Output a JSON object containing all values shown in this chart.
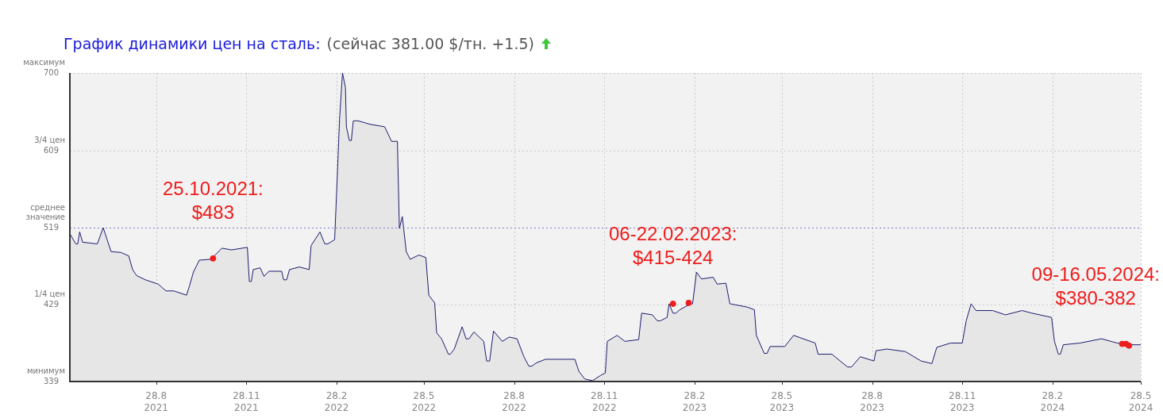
{
  "chart_data": {
    "type": "area",
    "title": "График динамики цен на сталь:",
    "subtitle": "(сейчас 381.00 $/тн. +1.5)",
    "xlim": [
      "2021-06-01",
      "2024-05-28"
    ],
    "xticks": [
      {
        "value": "2021-08-28",
        "label": "28.8\n2021"
      },
      {
        "value": "2021-11-28",
        "label": "28.11\n2021"
      },
      {
        "value": "2022-02-28",
        "label": "28.2\n2022"
      },
      {
        "value": "2022-05-28",
        "label": "28.5\n2022"
      },
      {
        "value": "2022-08-28",
        "label": "28.8\n2022"
      },
      {
        "value": "2022-11-28",
        "label": "28.11\n2022"
      },
      {
        "value": "2023-02-28",
        "label": "28.2\n2023"
      },
      {
        "value": "2023-05-28",
        "label": "28.5\n2023"
      },
      {
        "value": "2023-08-28",
        "label": "28.8\n2023"
      },
      {
        "value": "2023-11-28",
        "label": "28.11\n2023"
      },
      {
        "value": "2024-02-28",
        "label": "28.2\n2024"
      },
      {
        "value": "2024-05-28",
        "label": "28.5\n2024"
      }
    ],
    "ylim": [
      339,
      700
    ],
    "yticks": [
      339,
      429,
      519,
      609,
      700
    ],
    "grid": true,
    "ref_lines": [
      {
        "axis": "y",
        "value": 519,
        "color": "#8080c8",
        "line_style": "dotted"
      }
    ],
    "series": [
      {
        "color": "#1c1c6e",
        "x": [
          "2021-06-01",
          "2021-06-07",
          "2021-06-09",
          "2021-06-11",
          "2021-06-14",
          "2021-06-29",
          "2021-07-05",
          "2021-07-13",
          "2021-07-23",
          "2021-07-31",
          "2021-08-04",
          "2021-08-08",
          "2021-08-17",
          "2021-08-30",
          "2021-09-07",
          "2021-09-15",
          "2021-09-28",
          "2021-10-01",
          "2021-10-05",
          "2021-10-11",
          "2021-10-23",
          "2021-11-03",
          "2021-11-13",
          "2021-11-29",
          "2021-12-01",
          "2021-12-03",
          "2021-12-05",
          "2021-12-12",
          "2021-12-16",
          "2021-12-21",
          "2022-01-03",
          "2022-01-05",
          "2022-01-08",
          "2022-01-11",
          "2022-01-21",
          "2022-01-31",
          "2022-02-02",
          "2022-02-11",
          "2022-02-16",
          "2022-02-19",
          "2022-02-26",
          "2022-03-01",
          "2022-03-03",
          "2022-03-06",
          "2022-03-09",
          "2022-03-10",
          "2022-03-13",
          "2022-03-15",
          "2022-03-17",
          "2022-03-22",
          "2022-04-03",
          "2022-04-18",
          "2022-04-25",
          "2022-05-01",
          "2022-05-02",
          "2022-05-03",
          "2022-05-06",
          "2022-05-10",
          "2022-05-14",
          "2022-05-23",
          "2022-05-30",
          "2022-06-02",
          "2022-06-08",
          "2022-06-10",
          "2022-06-15",
          "2022-06-22",
          "2022-06-24",
          "2022-06-28",
          "2022-07-06",
          "2022-07-10",
          "2022-07-13",
          "2022-07-18",
          "2022-07-28",
          "2022-07-31",
          "2022-08-03",
          "2022-08-07",
          "2022-08-16",
          "2022-08-23",
          "2022-08-31",
          "2022-09-07",
          "2022-09-12",
          "2022-09-15",
          "2022-09-20",
          "2022-09-29",
          "2022-10-29",
          "2022-11-02",
          "2022-11-08",
          "2022-11-16",
          "2022-11-24",
          "2022-11-29",
          "2022-12-01",
          "2022-12-11",
          "2022-12-19",
          "2023-01-02",
          "2023-01-05",
          "2023-01-16",
          "2023-01-21",
          "2023-01-24",
          "2023-01-31",
          "2023-02-02",
          "2023-02-06",
          "2023-02-09",
          "2023-02-13",
          "2023-02-21",
          "2023-02-26",
          "2023-03-02",
          "2023-03-07",
          "2023-03-19",
          "2023-03-23",
          "2023-04-01",
          "2023-04-05",
          "2023-04-23",
          "2023-04-30",
          "2023-05-02",
          "2023-05-10",
          "2023-05-13",
          "2023-05-16",
          "2023-05-31",
          "2023-06-09",
          "2023-07-01",
          "2023-07-04",
          "2023-07-18",
          "2023-08-03",
          "2023-08-07",
          "2023-08-16",
          "2023-08-30",
          "2023-09-01",
          "2023-09-12",
          "2023-10-01",
          "2023-10-17",
          "2023-10-28",
          "2023-11-02",
          "2023-11-16",
          "2023-11-28",
          "2023-12-02",
          "2023-12-07",
          "2023-12-12",
          "2023-12-29",
          "2024-01-11",
          "2024-01-28",
          "2024-02-07",
          "2024-02-27",
          "2024-03-01",
          "2024-03-05",
          "2024-03-07",
          "2024-03-10",
          "2024-03-27",
          "2024-04-18",
          "2024-05-04",
          "2024-05-18",
          "2024-05-28"
        ],
        "values": [
          512,
          500,
          500,
          514,
          502,
          500,
          519,
          491,
          490,
          486,
          470,
          463,
          458,
          453,
          445,
          445,
          440,
          451,
          467,
          481,
          482,
          495,
          493,
          496,
          456,
          456,
          470,
          472,
          462,
          468,
          468,
          458,
          458,
          470,
          473,
          470,
          498,
          514,
          500,
          500,
          505,
          588,
          646,
          700,
          683,
          637,
          621,
          621,
          644,
          644,
          640,
          637,
          620,
          620,
          569,
          518,
          532,
          491,
          482,
          487,
          484,
          440,
          431,
          396,
          389,
          371,
          371,
          377,
          403,
          389,
          389,
          397,
          386,
          363,
          363,
          398,
          386,
          391,
          389,
          368,
          357,
          357,
          361,
          365,
          365,
          351,
          342,
          340,
          346,
          349,
          386,
          393,
          386,
          388,
          419,
          417,
          410,
          410,
          414,
          430,
          419,
          419,
          423,
          428,
          430,
          467,
          459,
          461,
          453,
          454,
          430,
          426,
          423,
          393,
          372,
          372,
          380,
          380,
          393,
          384,
          371,
          371,
          356,
          356,
          368,
          363,
          375,
          377,
          374,
          363,
          360,
          379,
          384,
          384,
          410,
          430,
          422,
          422,
          417,
          422,
          419,
          414,
          386,
          371,
          371,
          382,
          384,
          389,
          384,
          382,
          382
        ]
      },
      {
        "type": "scatter",
        "color": "#ee1c1c",
        "marker": "circle",
        "x": [
          "2021-10-25",
          "2023-02-06",
          "2023-02-22",
          "2024-05-09",
          "2024-05-13",
          "2024-05-16"
        ],
        "values": [
          483,
          430,
          431,
          383,
          383,
          381
        ]
      }
    ],
    "annotations": [
      "минимум",
      "1/4 цен",
      "среднее\nзначение",
      "3/4 цен",
      "максимум",
      {
        "text": "25.10.2021:\n$483",
        "x": "2021-10-25",
        "y": 483
      },
      {
        "text": "06-22.02.2023:\n$415-424",
        "x": "2023-02-06",
        "y": 430
      },
      {
        "text": "09-16.05.2024:\n$380-382",
        "x": "2024-05-13",
        "y": 383
      }
    ]
  }
}
